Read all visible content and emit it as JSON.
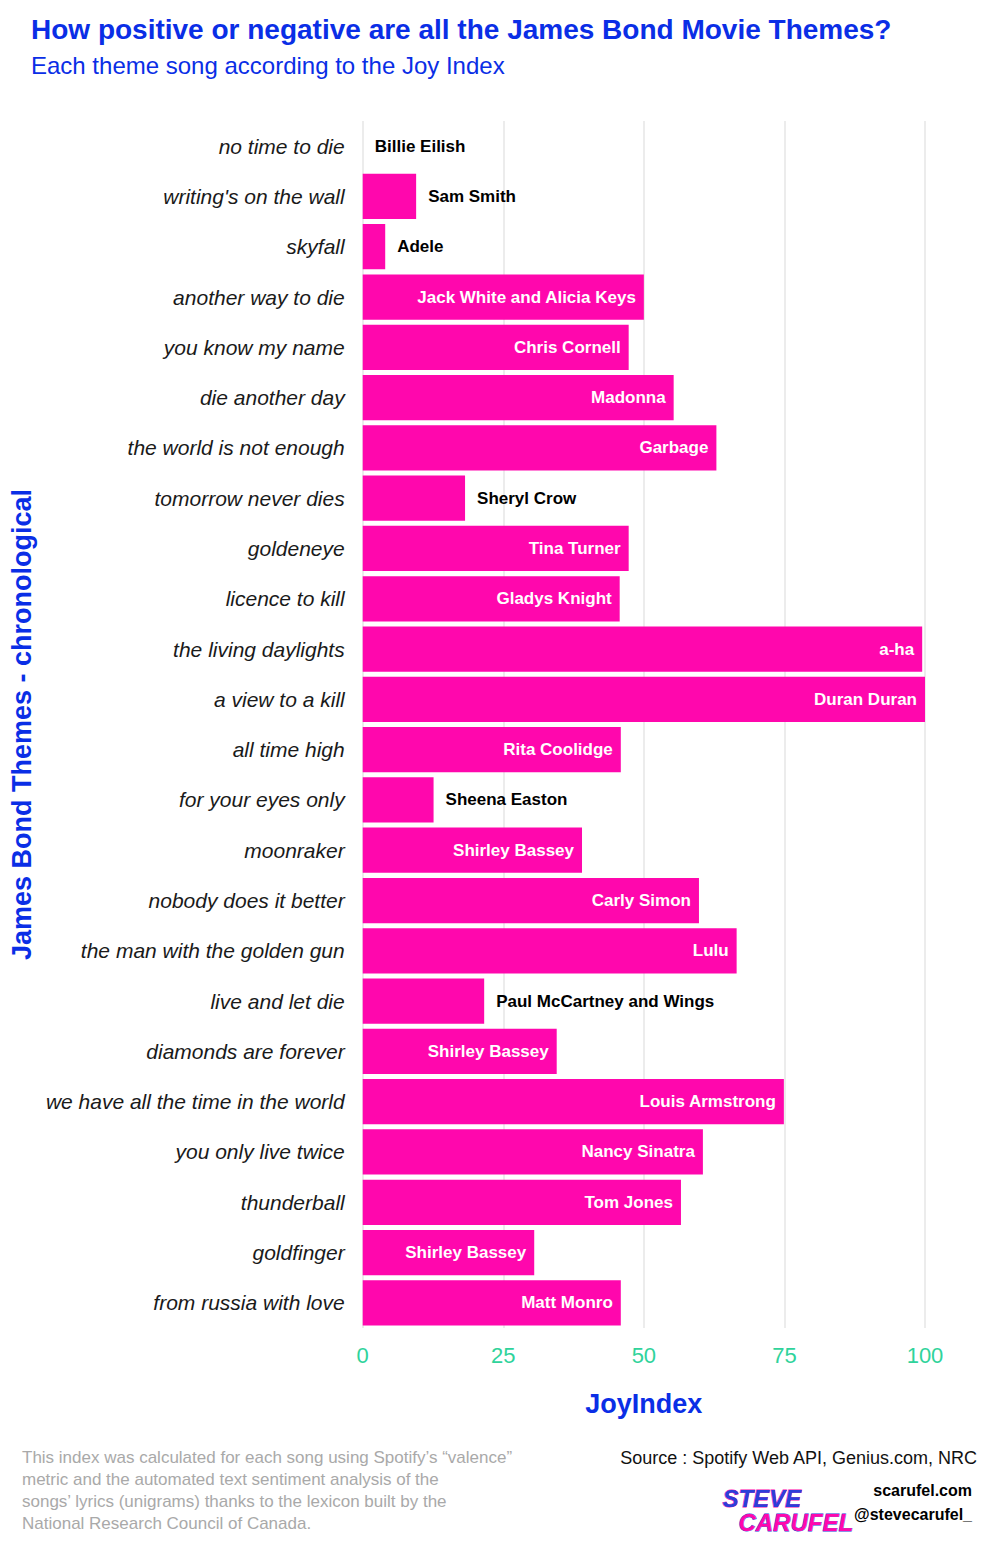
{
  "chart_data": {
    "type": "bar",
    "orientation": "horizontal",
    "title": "How positive or negative are all the James Bond Movie Themes?",
    "subtitle": "Each theme song according to the Joy Index",
    "x_label": "JoyIndex",
    "y_label": "James Bond Themes - chronological",
    "categories": [
      "from russia with love",
      "goldfinger",
      "thunderball",
      "you only live twice",
      "we have all the time in the world",
      "diamonds are forever",
      "live and let die",
      "the man with the golden gun",
      "nobody does it better",
      "moonraker",
      "for your eyes only",
      "all time high",
      "a view to a kill",
      "the living daylights",
      "licence to kill",
      "goldeneye",
      "tomorrow never dies",
      "the world is not enough",
      "die another day",
      "you know my name",
      "another way to die",
      "skyfall",
      "writing's on the wall",
      "no time to die"
    ],
    "values": [
      45.9,
      30.5,
      56.6,
      60.5,
      74.9,
      34.5,
      21.6,
      66.5,
      59.8,
      39,
      12.6,
      45.9,
      100,
      99.5,
      45.7,
      47.3,
      18.2,
      62.9,
      55.3,
      47.3,
      50,
      4,
      9.5,
      0
    ],
    "artists": [
      "Matt Monro",
      "Shirley Bassey",
      "Tom Jones",
      "Nancy Sinatra",
      "Louis Armstrong",
      "Shirley Bassey",
      "Paul McCartney and Wings",
      "Lulu",
      "Carly Simon",
      "Shirley Bassey",
      "Sheena Easton",
      "Rita Coolidge",
      "Duran Duran",
      "a-ha",
      "Gladys Knight",
      "Tina Turner",
      "Sheryl Crow",
      "Garbage",
      "Madonna",
      "Chris Cornell",
      "Jack White and Alicia Keys",
      "Adele",
      "Sam Smith",
      "Billie Eilish"
    ],
    "color": "#ff07ad",
    "xlim": [
      0,
      100
    ],
    "xticks": [
      0,
      25,
      50,
      75,
      100
    ],
    "grid": true,
    "note": [
      "This index was calculated for each song using Spotify’s “valence”",
      "metric and the automated text sentiment analysis of the",
      "songs’ lyrics (unigrams) thanks to the lexicon built by the",
      "National Research Council of Canada."
    ],
    "source": "Source : Spotify Web API, Genius.com, NRC",
    "credits": [
      "scarufel.com",
      "@stevecarufel_"
    ],
    "logo": "STEVE CARUFEL"
  }
}
